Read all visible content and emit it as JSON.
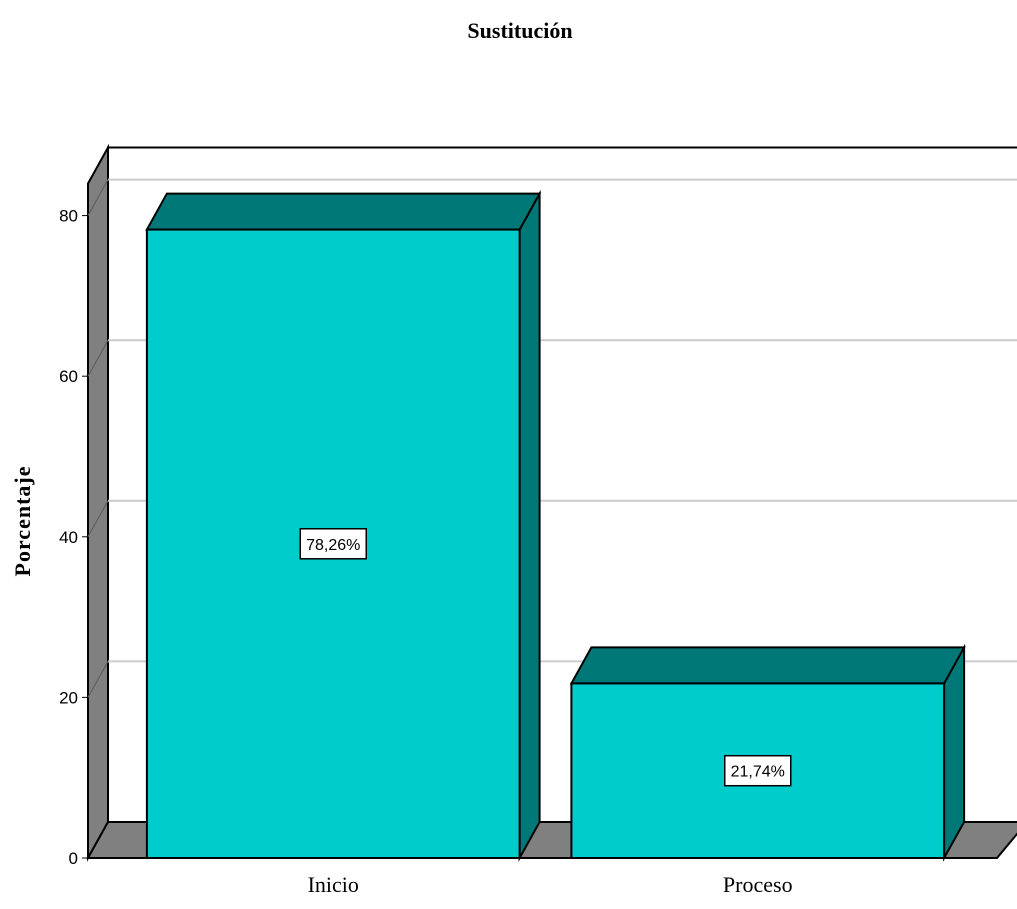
{
  "chart_data": {
    "type": "bar",
    "title": "Sustitución",
    "xlabel": "",
    "ylabel": "Porcentaje",
    "categories": [
      "Inicio",
      "Proceso"
    ],
    "values": [
      78.26,
      21.74
    ],
    "data_labels": [
      "78,26%",
      "21,74%"
    ],
    "ylim": [
      0,
      84
    ],
    "yticks": [
      0,
      20,
      40,
      60,
      80
    ],
    "grid": true,
    "style": "3d",
    "colors": {
      "bar_front": "#00cccc",
      "bar_side": "#007878",
      "wall": "#808080",
      "grid": "#cccccc",
      "outline": "#000000"
    }
  }
}
